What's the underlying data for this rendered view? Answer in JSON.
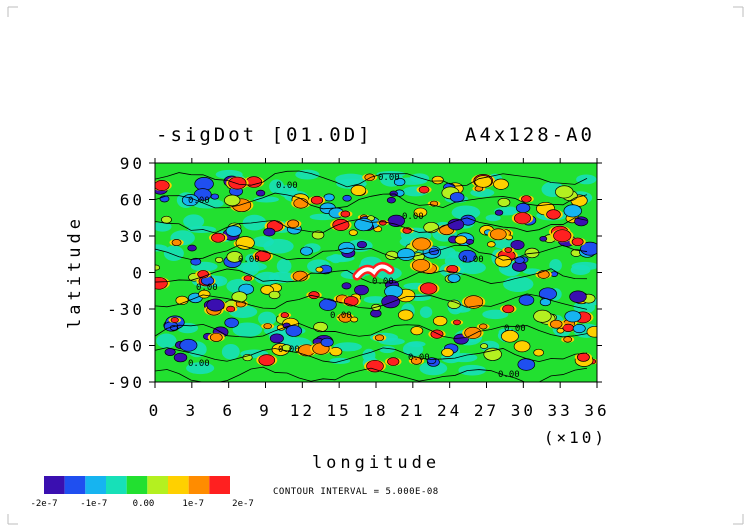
{
  "chart_data": {
    "type": "heatmap",
    "title_left": "-sigDot [01.0D]",
    "title_right": "A4x128-A0",
    "xlabel": "longitude",
    "ylabel": "latitude",
    "x_ticks": [
      "0",
      "3",
      "6",
      "9",
      "12",
      "15",
      "18",
      "21",
      "24",
      "27",
      "30",
      "33",
      "36"
    ],
    "x_multiplier": "(×10)",
    "y_ticks": [
      "90",
      "60",
      "30",
      "0",
      "-30",
      "-60",
      "-90"
    ],
    "xlim": [
      0,
      360
    ],
    "ylim": [
      -90,
      90
    ],
    "contour_labels": [
      "0.00",
      "0.00",
      "0.00",
      "0.00",
      "0.00",
      "0.00",
      "0.00",
      "0.00",
      "0.00",
      "0.00",
      "0.00",
      "0.00",
      "0.00",
      "0.00"
    ],
    "colorbar": {
      "colors": [
        "#3a0fb0",
        "#1f4ff0",
        "#16b4f0",
        "#17e0b8",
        "#22e030",
        "#b4f020",
        "#ffd000",
        "#ff8c00",
        "#ff2020"
      ],
      "labels": [
        "-2e-7",
        "-1e-7",
        "0.00",
        "1e-7",
        "2e-7"
      ]
    },
    "contour_interval_text": "CONTOUR INTERVAL = 5.000E-08"
  }
}
